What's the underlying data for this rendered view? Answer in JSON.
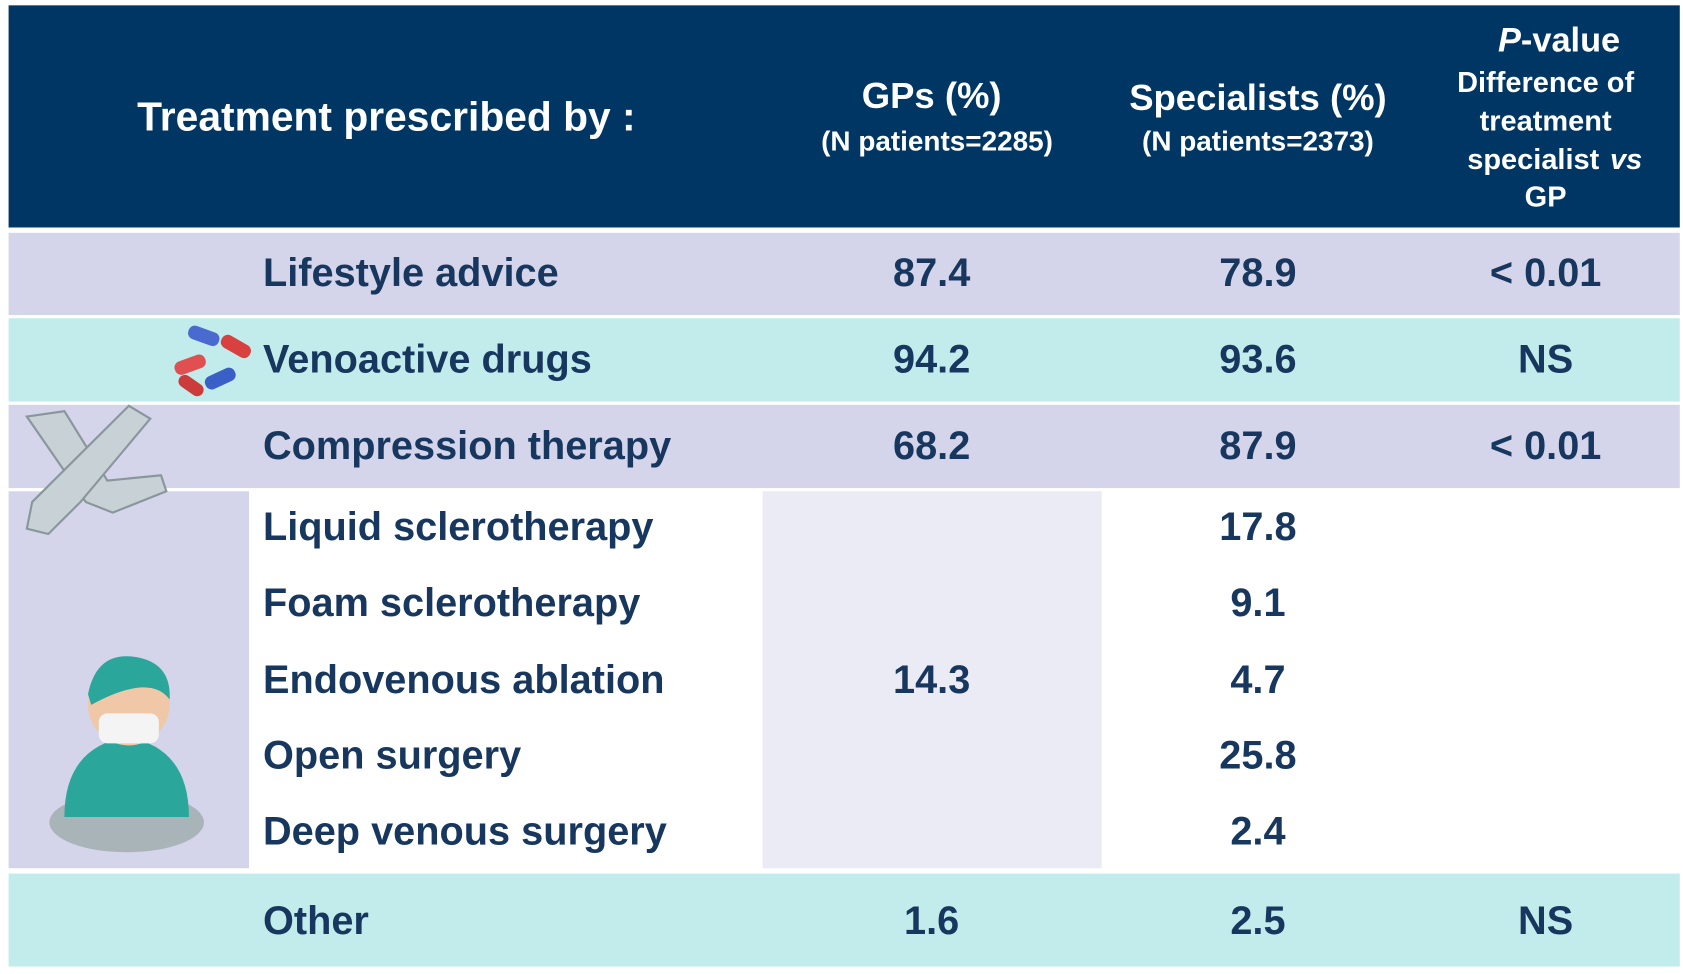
{
  "header": {
    "treatment": "Treatment prescribed by :",
    "gps": {
      "title": "GPs (%)",
      "n": "(N patients=2285)"
    },
    "specialists": {
      "title": "Specialists (%)",
      "n": "(N patients=2373)"
    },
    "p_value": {
      "italic": "P",
      "rest": "-value",
      "line1": "Difference of",
      "line2": "treatment",
      "line3": "specialist",
      "line3_italic": "vs",
      "line4": "GP"
    }
  },
  "rows": [
    {
      "label": "Lifestyle advice",
      "gps": 87.4,
      "specialists": 78.9,
      "p_value": "< 0.01"
    },
    {
      "label": "Venoactive drugs",
      "gps": 94.2,
      "specialists": 93.6,
      "p_value": "NS"
    },
    {
      "label": "Compression therapy",
      "gps": 68.2,
      "specialists": 87.9,
      "p_value": "< 0.01"
    }
  ],
  "procedures": {
    "gps": 14.3,
    "rows": [
      {
        "label": "Liquid sclerotherapy",
        "specialists": 17.8
      },
      {
        "label": "Foam sclerotherapy",
        "specialists": 9.1
      },
      {
        "label": "Endovenous ablation",
        "specialists": 4.7
      },
      {
        "label": "Open surgery",
        "specialists": 25.8
      },
      {
        "label": "Deep venous surgery",
        "specialists": 2.4
      }
    ]
  },
  "other": {
    "label": "Other",
    "gps": 1.6,
    "specialists": 2.5,
    "p_value": "NS"
  }
}
